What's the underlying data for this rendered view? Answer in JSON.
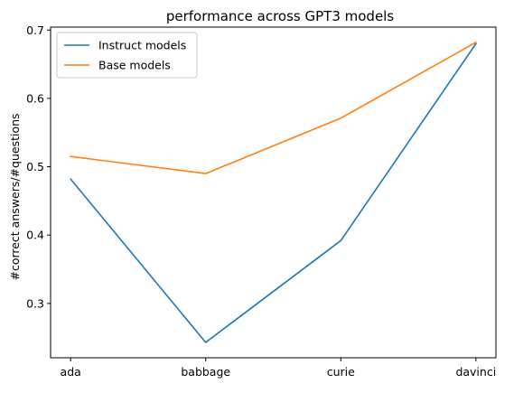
{
  "chart_data": {
    "type": "line",
    "title": "performance across GPT3 models",
    "xlabel": "",
    "ylabel": "#correct answers/#questions",
    "categories": [
      "ada",
      "babbage",
      "curie",
      "davinci"
    ],
    "series": [
      {
        "name": "Instruct models",
        "color": "#1f77b4",
        "values": [
          0.482,
          0.243,
          0.392,
          0.68
        ]
      },
      {
        "name": "Base models",
        "color": "#ff7f0e",
        "values": [
          0.515,
          0.49,
          0.571,
          0.682
        ]
      }
    ],
    "ylim": [
      0.2205,
      0.7043
    ],
    "yticks": [
      0.3,
      0.4,
      0.5,
      0.6,
      0.7
    ],
    "ytick_labels": [
      "0.3",
      "0.4",
      "0.5",
      "0.6",
      "0.7"
    ],
    "grid": false,
    "legend_position": "upper-left"
  }
}
